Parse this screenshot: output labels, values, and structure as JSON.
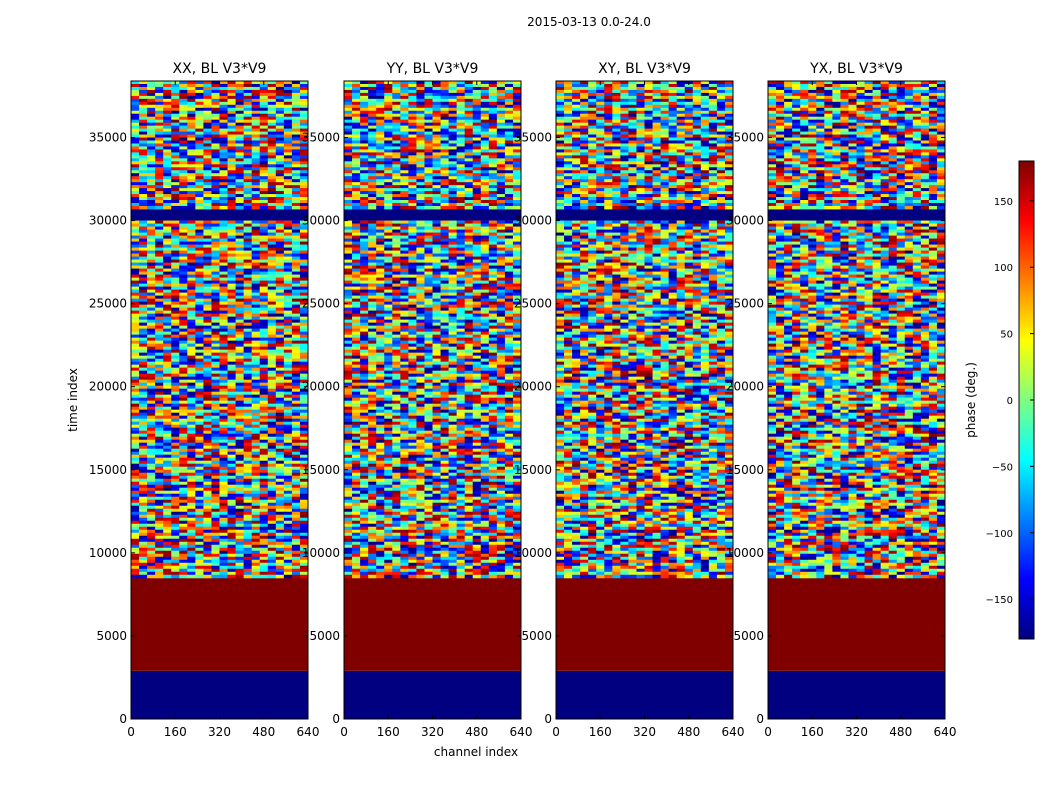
{
  "suptitle": "2015-03-13 0.0-24.0",
  "chart_data": {
    "type": "heatmap",
    "panels": [
      {
        "title": "XX, BL V3*V9",
        "corr": "XX"
      },
      {
        "title": "YY, BL V3*V9",
        "corr": "YY"
      },
      {
        "title": "XY, BL V3*V9",
        "corr": "XY"
      },
      {
        "title": "YX, BL V3*V9",
        "corr": "YX"
      }
    ],
    "xlabel": "channel index",
    "ylabel": "time index",
    "xlim": [
      0,
      640
    ],
    "ylim": [
      0,
      38400
    ],
    "xticks": [
      0,
      160,
      320,
      480,
      640
    ],
    "yticks": [
      0,
      5000,
      10000,
      15000,
      20000,
      25000,
      30000,
      35000
    ],
    "colorbar": {
      "label": "phase (deg.)",
      "range": [
        -180,
        180
      ],
      "ticks": [
        150,
        100,
        50,
        0,
        -50,
        -100,
        -150
      ],
      "tick_labels": [
        "150",
        "100",
        "50",
        "0",
        "−50",
        "−100",
        "−150"
      ],
      "colormap": "jet",
      "colors": [
        "#00007f",
        "#0000ff",
        "#007fff",
        "#00ffff",
        "#7fff7f",
        "#ffff00",
        "#ff7f00",
        "#ff0000",
        "#7f0000"
      ]
    },
    "time_bands": [
      {
        "from": 0,
        "to": 2900,
        "pattern": "solid-low",
        "phase": -180
      },
      {
        "from": 2900,
        "to": 8500,
        "pattern": "solid-high",
        "phase": 180
      },
      {
        "from": 8500,
        "to": 30000,
        "pattern": "noise"
      },
      {
        "from": 30000,
        "to": 30700,
        "pattern": "solid-low",
        "phase": -180
      },
      {
        "from": 30700,
        "to": 38400,
        "pattern": "noise"
      }
    ]
  }
}
